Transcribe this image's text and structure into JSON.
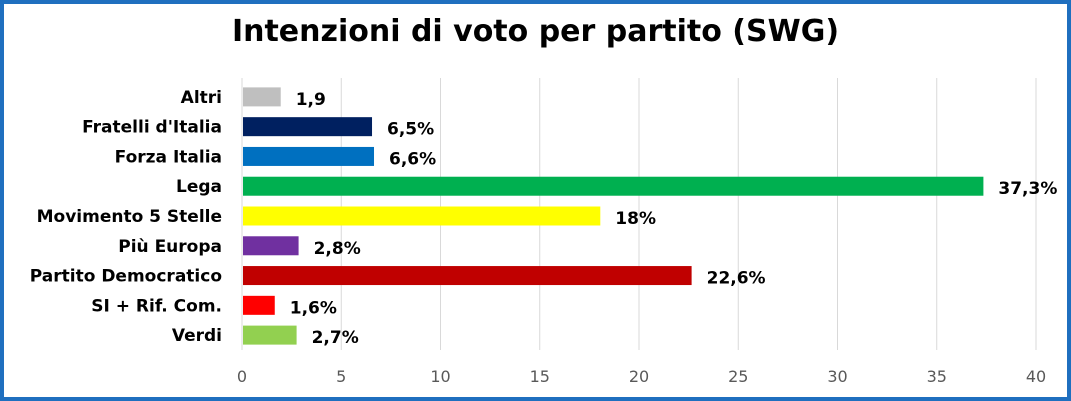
{
  "chart_data": {
    "type": "bar",
    "orientation": "horizontal",
    "title": "Intenzioni di voto per partito (SWG)",
    "xlabel": "",
    "ylabel": "",
    "xlim": [
      0,
      40
    ],
    "x_ticks": [
      "0",
      "5",
      "10",
      "15",
      "20",
      "25",
      "30",
      "35",
      "40"
    ],
    "grid": true,
    "categories": [
      "Altri",
      "Fratelli d'Italia",
      "Forza Italia",
      "Lega",
      "Movimento 5 Stelle",
      "Più Europa",
      "Partito Democratico",
      "SI + Rif. Com.",
      "Verdi"
    ],
    "values": [
      1.9,
      6.5,
      6.6,
      37.3,
      18,
      2.8,
      22.6,
      1.6,
      2.7
    ],
    "data_labels": [
      "1,9",
      "6,5%",
      "6,6%",
      "37,3%",
      "18%",
      "2,8%",
      "22,6%",
      "1,6%",
      "2,7%"
    ],
    "colors": [
      "#bfbfbf",
      "#002060",
      "#0070c0",
      "#00b050",
      "#ffff00",
      "#7030a0",
      "#c00000",
      "#ff0000",
      "#92d050"
    ]
  },
  "frame_color": "#1f6fbf"
}
